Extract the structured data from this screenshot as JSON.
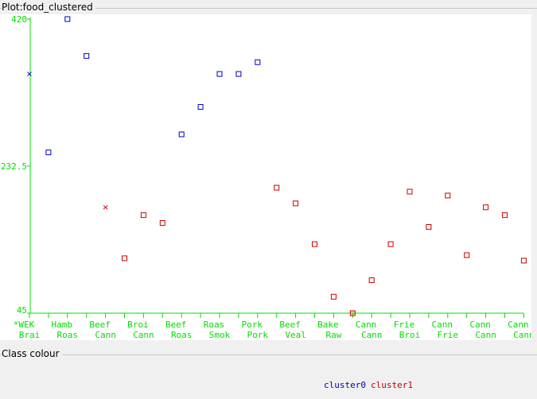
{
  "plot": {
    "title": "Plot:food_clustered"
  },
  "class_panel": {
    "title": "Class colour"
  },
  "legend": [
    {
      "label": "cluster0",
      "color": "#0000c0"
    },
    {
      "label": "cluster1",
      "color": "#c80000"
    }
  ],
  "chart_data": {
    "type": "scatter",
    "y_ticks": [
      "420",
      "232.5",
      "45"
    ],
    "ylim": [
      45,
      420
    ],
    "x_labels_row1": [
      "*WEK",
      "Hamb",
      "Beef",
      "Broi",
      "Beef",
      "Roas",
      "Pork",
      "Beef",
      "Bake",
      "Cann",
      "Frie",
      "Cann",
      "Cann",
      "Cann"
    ],
    "x_labels_row2": [
      "Brai",
      "Roas",
      "Cann",
      "Cann",
      "Roas",
      "Smok",
      "Pork",
      "Veal",
      "Raw",
      "Cann",
      "Broi",
      "Frie",
      "Cann",
      "Cann"
    ],
    "point_count": 27,
    "points": [
      {
        "x": 0,
        "y": 350,
        "cluster": "cluster0",
        "marker": "x"
      },
      {
        "x": 1,
        "y": 250,
        "cluster": "cluster0",
        "marker": "square"
      },
      {
        "x": 2,
        "y": 420,
        "cluster": "cluster0",
        "marker": "square"
      },
      {
        "x": 3,
        "y": 373,
        "cluster": "cluster0",
        "marker": "square"
      },
      {
        "x": 4,
        "y": 180,
        "cluster": "cluster1",
        "marker": "x"
      },
      {
        "x": 5,
        "y": 115,
        "cluster": "cluster1",
        "marker": "square"
      },
      {
        "x": 6,
        "y": 170,
        "cluster": "cluster1",
        "marker": "square"
      },
      {
        "x": 7,
        "y": 160,
        "cluster": "cluster1",
        "marker": "square"
      },
      {
        "x": 8,
        "y": 273,
        "cluster": "cluster0",
        "marker": "square"
      },
      {
        "x": 9,
        "y": 308,
        "cluster": "cluster0",
        "marker": "square"
      },
      {
        "x": 10,
        "y": 350,
        "cluster": "cluster0",
        "marker": "square"
      },
      {
        "x": 11,
        "y": 350,
        "cluster": "cluster0",
        "marker": "square"
      },
      {
        "x": 12,
        "y": 365,
        "cluster": "cluster0",
        "marker": "square"
      },
      {
        "x": 13,
        "y": 205,
        "cluster": "cluster1",
        "marker": "square"
      },
      {
        "x": 14,
        "y": 185,
        "cluster": "cluster1",
        "marker": "square"
      },
      {
        "x": 15,
        "y": 133,
        "cluster": "cluster1",
        "marker": "square"
      },
      {
        "x": 16,
        "y": 66,
        "cluster": "cluster1",
        "marker": "square"
      },
      {
        "x": 17,
        "y": 45,
        "cluster": "cluster1",
        "marker": "square"
      },
      {
        "x": 18,
        "y": 87,
        "cluster": "cluster1",
        "marker": "square"
      },
      {
        "x": 19,
        "y": 133,
        "cluster": "cluster1",
        "marker": "square"
      },
      {
        "x": 20,
        "y": 200,
        "cluster": "cluster1",
        "marker": "square"
      },
      {
        "x": 21,
        "y": 155,
        "cluster": "cluster1",
        "marker": "square"
      },
      {
        "x": 22,
        "y": 195,
        "cluster": "cluster1",
        "marker": "square"
      },
      {
        "x": 23,
        "y": 119,
        "cluster": "cluster1",
        "marker": "square"
      },
      {
        "x": 24,
        "y": 180,
        "cluster": "cluster1",
        "marker": "square"
      },
      {
        "x": 25,
        "y": 170,
        "cluster": "cluster1",
        "marker": "square"
      },
      {
        "x": 26,
        "y": 112,
        "cluster": "cluster1",
        "marker": "square"
      }
    ],
    "colors": {
      "axis": "#00e000",
      "cluster0": "#0000c0",
      "cluster1": "#c80000"
    }
  }
}
